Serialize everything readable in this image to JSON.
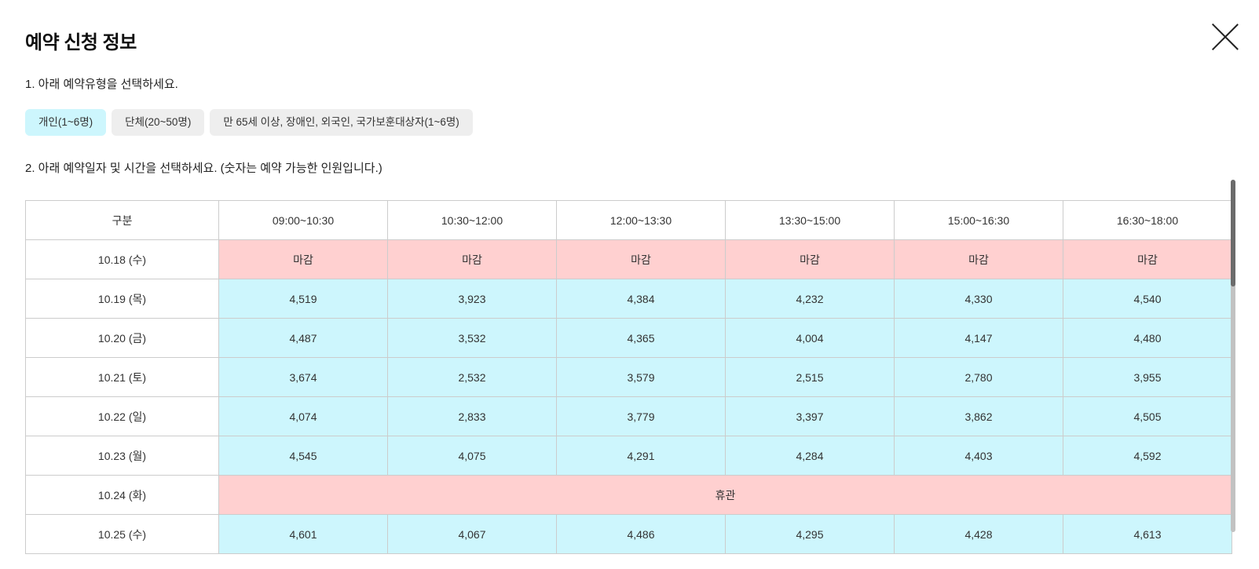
{
  "modal": {
    "title": "예약 신청 정보",
    "close_icon": "close-icon"
  },
  "step1": {
    "label": "1. 아래 예약유형을 선택하세요.",
    "types": [
      {
        "label": "개인(1~6명)",
        "selected": true
      },
      {
        "label": "단체(20~50명)",
        "selected": false
      },
      {
        "label": "만 65세 이상, 장애인, 외국인, 국가보훈대상자(1~6명)",
        "selected": false
      }
    ]
  },
  "step2": {
    "label": "2. 아래 예약일자 및 시간을 선택하세요. (숫자는 예약 가능한 인원입니다.)"
  },
  "table": {
    "headers": [
      "구분",
      "09:00~10:30",
      "10:30~12:00",
      "12:00~13:30",
      "13:30~15:00",
      "15:00~16:30",
      "16:30~18:00"
    ],
    "rows": [
      {
        "date": "10.18 (수)",
        "status": "closed",
        "cells": [
          "마감",
          "마감",
          "마감",
          "마감",
          "마감",
          "마감"
        ]
      },
      {
        "date": "10.19 (목)",
        "status": "open",
        "cells": [
          "4,519",
          "3,923",
          "4,384",
          "4,232",
          "4,330",
          "4,540"
        ]
      },
      {
        "date": "10.20 (금)",
        "status": "open",
        "cells": [
          "4,487",
          "3,532",
          "4,365",
          "4,004",
          "4,147",
          "4,480"
        ]
      },
      {
        "date": "10.21 (토)",
        "status": "open",
        "cells": [
          "3,674",
          "2,532",
          "3,579",
          "2,515",
          "2,780",
          "3,955"
        ]
      },
      {
        "date": "10.22 (일)",
        "status": "open",
        "cells": [
          "4,074",
          "2,833",
          "3,779",
          "3,397",
          "3,862",
          "4,505"
        ]
      },
      {
        "date": "10.23 (월)",
        "status": "open",
        "cells": [
          "4,545",
          "4,075",
          "4,291",
          "4,284",
          "4,403",
          "4,592"
        ]
      },
      {
        "date": "10.24 (화)",
        "status": "holiday",
        "holiday_label": "휴관"
      },
      {
        "date": "10.25 (수)",
        "status": "open",
        "cells": [
          "4,601",
          "4,067",
          "4,486",
          "4,295",
          "4,428",
          "4,613"
        ]
      }
    ]
  },
  "colors": {
    "selected_type": "#cdf6fd",
    "unselected_type": "#eeeeee",
    "open_cell": "#cdf6fd",
    "closed_cell": "#ffd0d0"
  }
}
